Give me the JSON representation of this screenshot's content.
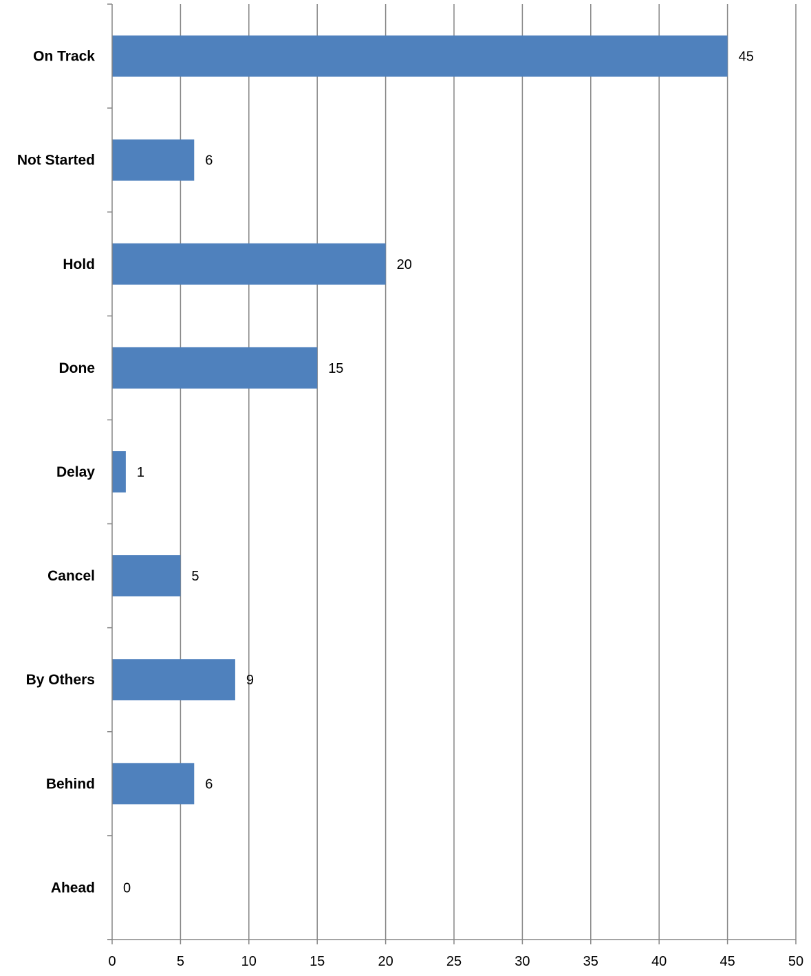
{
  "chart_data": {
    "type": "bar",
    "orientation": "horizontal",
    "categories": [
      "On Track",
      "Not Started",
      "Hold",
      "Done",
      "Delay",
      "Cancel",
      "By Others",
      "Behind",
      "Ahead"
    ],
    "values": [
      45,
      6,
      20,
      15,
      1,
      5,
      9,
      6,
      0
    ],
    "data_labels": [
      "45",
      "6",
      "20",
      "15",
      "1",
      "5",
      "9",
      "6",
      "0"
    ],
    "xlim": [
      0,
      50
    ],
    "x_ticks": [
      0,
      5,
      10,
      15,
      20,
      25,
      30,
      35,
      40,
      45,
      50
    ],
    "x_tick_labels": [
      "0",
      "5",
      "10",
      "15",
      "20",
      "25",
      "30",
      "35",
      "40",
      "45",
      "50"
    ],
    "grid": "vertical",
    "legend": "none",
    "bar_color": "#4F81BD",
    "grid_color": "#868686",
    "title": "",
    "xlabel": "",
    "ylabel": ""
  }
}
